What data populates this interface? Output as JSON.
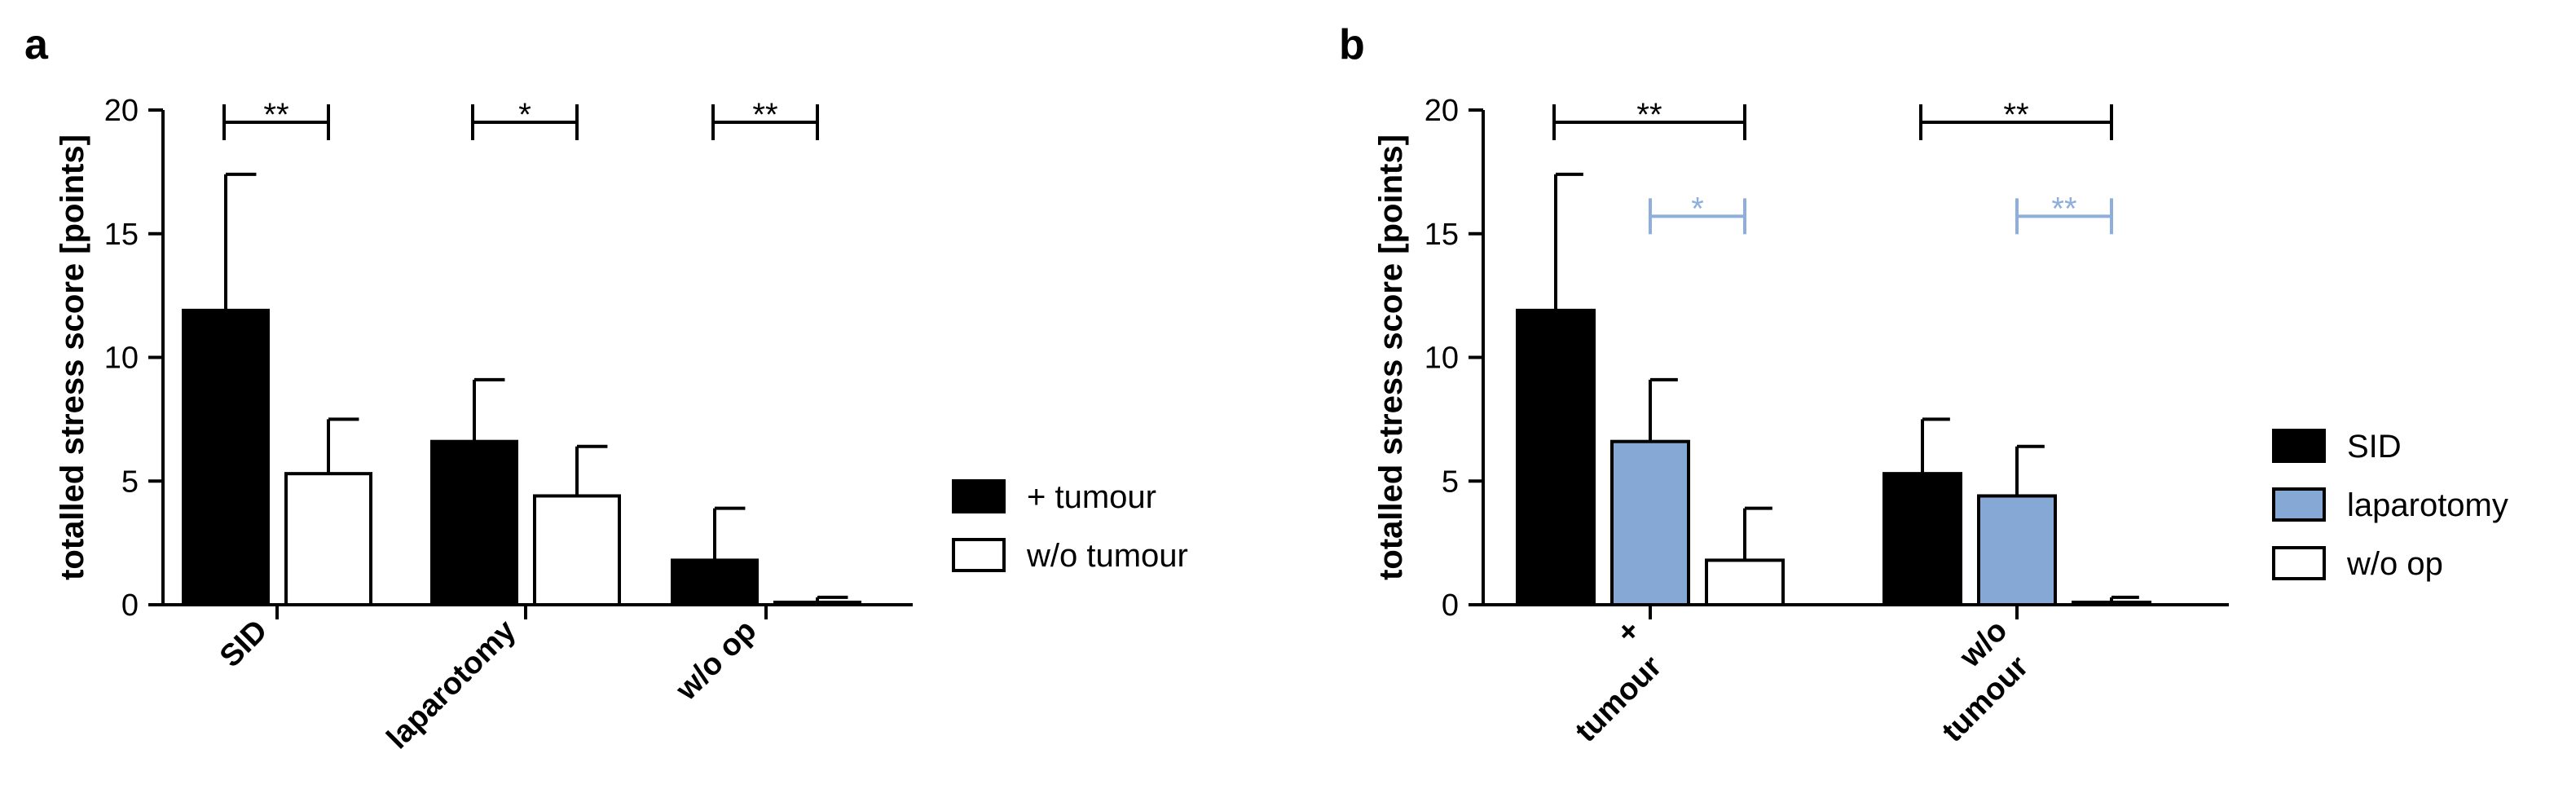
{
  "colors": {
    "black": "#000000",
    "blue": "#86a8d4",
    "white": "#ffffff",
    "sig_blue": "#8eaedb"
  },
  "chart_data": [
    {
      "type": "bar",
      "panel": "a",
      "ylabel": "totalled stress score [points]",
      "ylim": [
        0,
        20
      ],
      "yticks": [
        "0",
        "5",
        "10",
        "15",
        "20"
      ],
      "categories": [
        "SID",
        "laparotomy",
        "w/o op"
      ],
      "series": [
        {
          "name": "+ tumour",
          "color": "#000000",
          "values": [
            11.9,
            6.6,
            1.8
          ],
          "errors": [
            5.5,
            2.5,
            2.1
          ]
        },
        {
          "name": "w/o tumour",
          "color": "#ffffff",
          "values": [
            5.3,
            4.4,
            0.1
          ],
          "errors": [
            2.2,
            2.0,
            0.2
          ]
        }
      ],
      "significance": [
        {
          "label": "**",
          "color": "#000000",
          "group": 0,
          "from": 0,
          "to": 1,
          "y": 20
        },
        {
          "label": "*",
          "color": "#000000",
          "group": 1,
          "from": 0,
          "to": 1,
          "y": 20
        },
        {
          "label": "**",
          "color": "#000000",
          "group": 2,
          "from": 0,
          "to": 1,
          "y": 20
        }
      ],
      "legend_position": "right"
    },
    {
      "type": "bar",
      "panel": "b",
      "ylabel": "totalled stress score [points]",
      "ylim": [
        0,
        20
      ],
      "yticks": [
        "0",
        "5",
        "10",
        "15",
        "20"
      ],
      "categories": [
        [
          "+",
          "tumour"
        ],
        [
          "w/o",
          "tumour"
        ]
      ],
      "series": [
        {
          "name": "SID",
          "color": "#000000",
          "values": [
            11.9,
            5.3
          ],
          "errors": [
            5.5,
            2.2
          ]
        },
        {
          "name": "laparotomy",
          "color": "#86a8d4",
          "values": [
            6.6,
            4.4
          ],
          "errors": [
            2.5,
            2.0
          ]
        },
        {
          "name": "w/o op",
          "color": "#ffffff",
          "values": [
            1.8,
            0.1
          ],
          "errors": [
            2.1,
            0.2
          ]
        }
      ],
      "significance": [
        {
          "label": "**",
          "color": "#000000",
          "group": 0,
          "from": 0,
          "to": 2,
          "y": 20
        },
        {
          "label": "*",
          "color": "#8eaedb",
          "group": 0,
          "from": 1,
          "to": 2,
          "y": 16.2
        },
        {
          "label": "**",
          "color": "#000000",
          "group": 1,
          "from": 0,
          "to": 2,
          "y": 20
        },
        {
          "label": "**",
          "color": "#8eaedb",
          "group": 1,
          "from": 1,
          "to": 2,
          "y": 16.2
        }
      ],
      "legend_position": "right"
    }
  ]
}
